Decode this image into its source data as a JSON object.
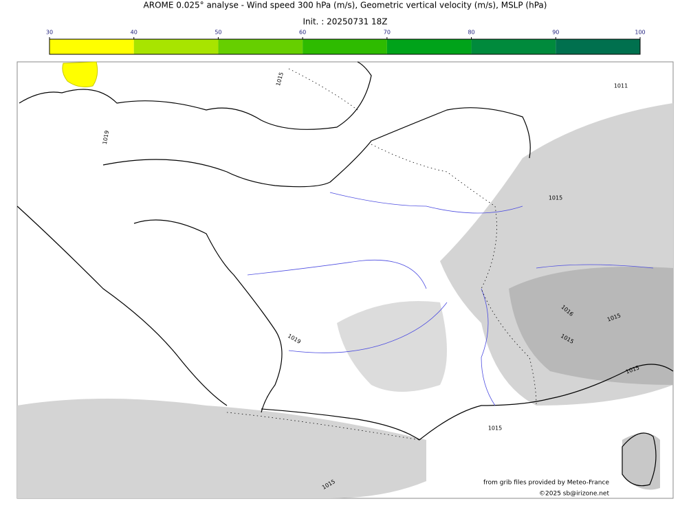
{
  "title": "AROME 0.025° analyse - Wind speed 300 hPa (m/s), Geometric vertical velocity (m/s), MSLP (hPa)",
  "init": "Init. : 20250731 18Z",
  "colorbar": {
    "ticks": [
      30,
      40,
      50,
      60,
      70,
      80,
      90,
      100
    ],
    "colors": [
      "#ffff00",
      "#a8e400",
      "#66cf00",
      "#2ebb00",
      "#00a31a",
      "#008a3c",
      "#00704e"
    ]
  },
  "isobar_labels": [
    1015,
    1019,
    1011,
    1015,
    1019,
    1015,
    1016,
    1015,
    1015,
    1015,
    1015
  ],
  "credits": [
    "from grib files provided by Meteo-France",
    "©2025 sb@irizone.net"
  ]
}
